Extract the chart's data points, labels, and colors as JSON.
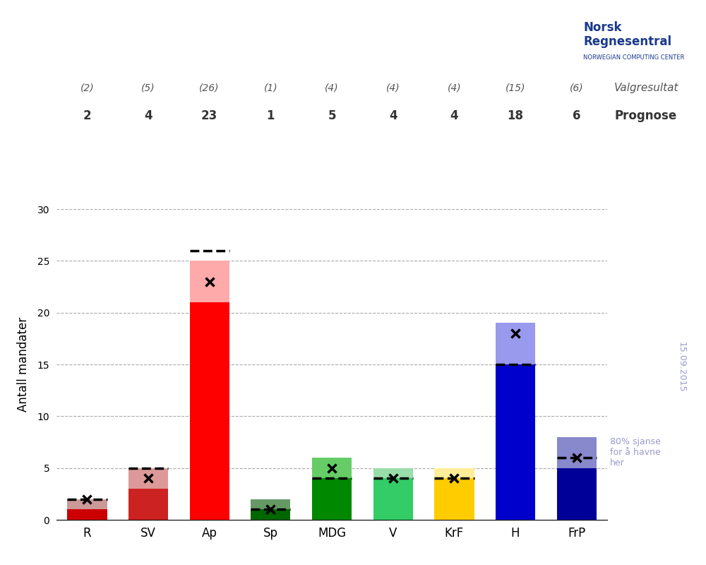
{
  "parties": [
    "R",
    "SV",
    "Ap",
    "Sp",
    "MDG",
    "V",
    "KrF",
    "H",
    "FrP"
  ],
  "valgresultat": [
    2,
    5,
    26,
    1,
    4,
    4,
    4,
    15,
    6
  ],
  "prognose": [
    2,
    4,
    23,
    1,
    5,
    4,
    4,
    18,
    6
  ],
  "ci_low": [
    1,
    3,
    21,
    1,
    4,
    4,
    4,
    15,
    5
  ],
  "ci_high": [
    2,
    5,
    25,
    2,
    6,
    5,
    5,
    19,
    8
  ],
  "bar_colors": [
    "#cc0000",
    "#cc2222",
    "#ff0000",
    "#006600",
    "#008800",
    "#33cc66",
    "#ffcc00",
    "#0000cc",
    "#000099"
  ],
  "ci_colors": [
    "#cc9999",
    "#dd9999",
    "#ffaaaa",
    "#669966",
    "#66cc66",
    "#99ddaa",
    "#ffee99",
    "#9999ee",
    "#8888cc"
  ],
  "ylabel": "Antall mandater",
  "ylim": [
    0,
    30
  ],
  "yticks": [
    0,
    5,
    10,
    15,
    20,
    25,
    30
  ],
  "annotation_label": "80% sjanse\nfor å havne\nher",
  "date_label": "15.09.2015",
  "valgresultat_label": "Valgresultat",
  "prognose_label": "Prognose"
}
